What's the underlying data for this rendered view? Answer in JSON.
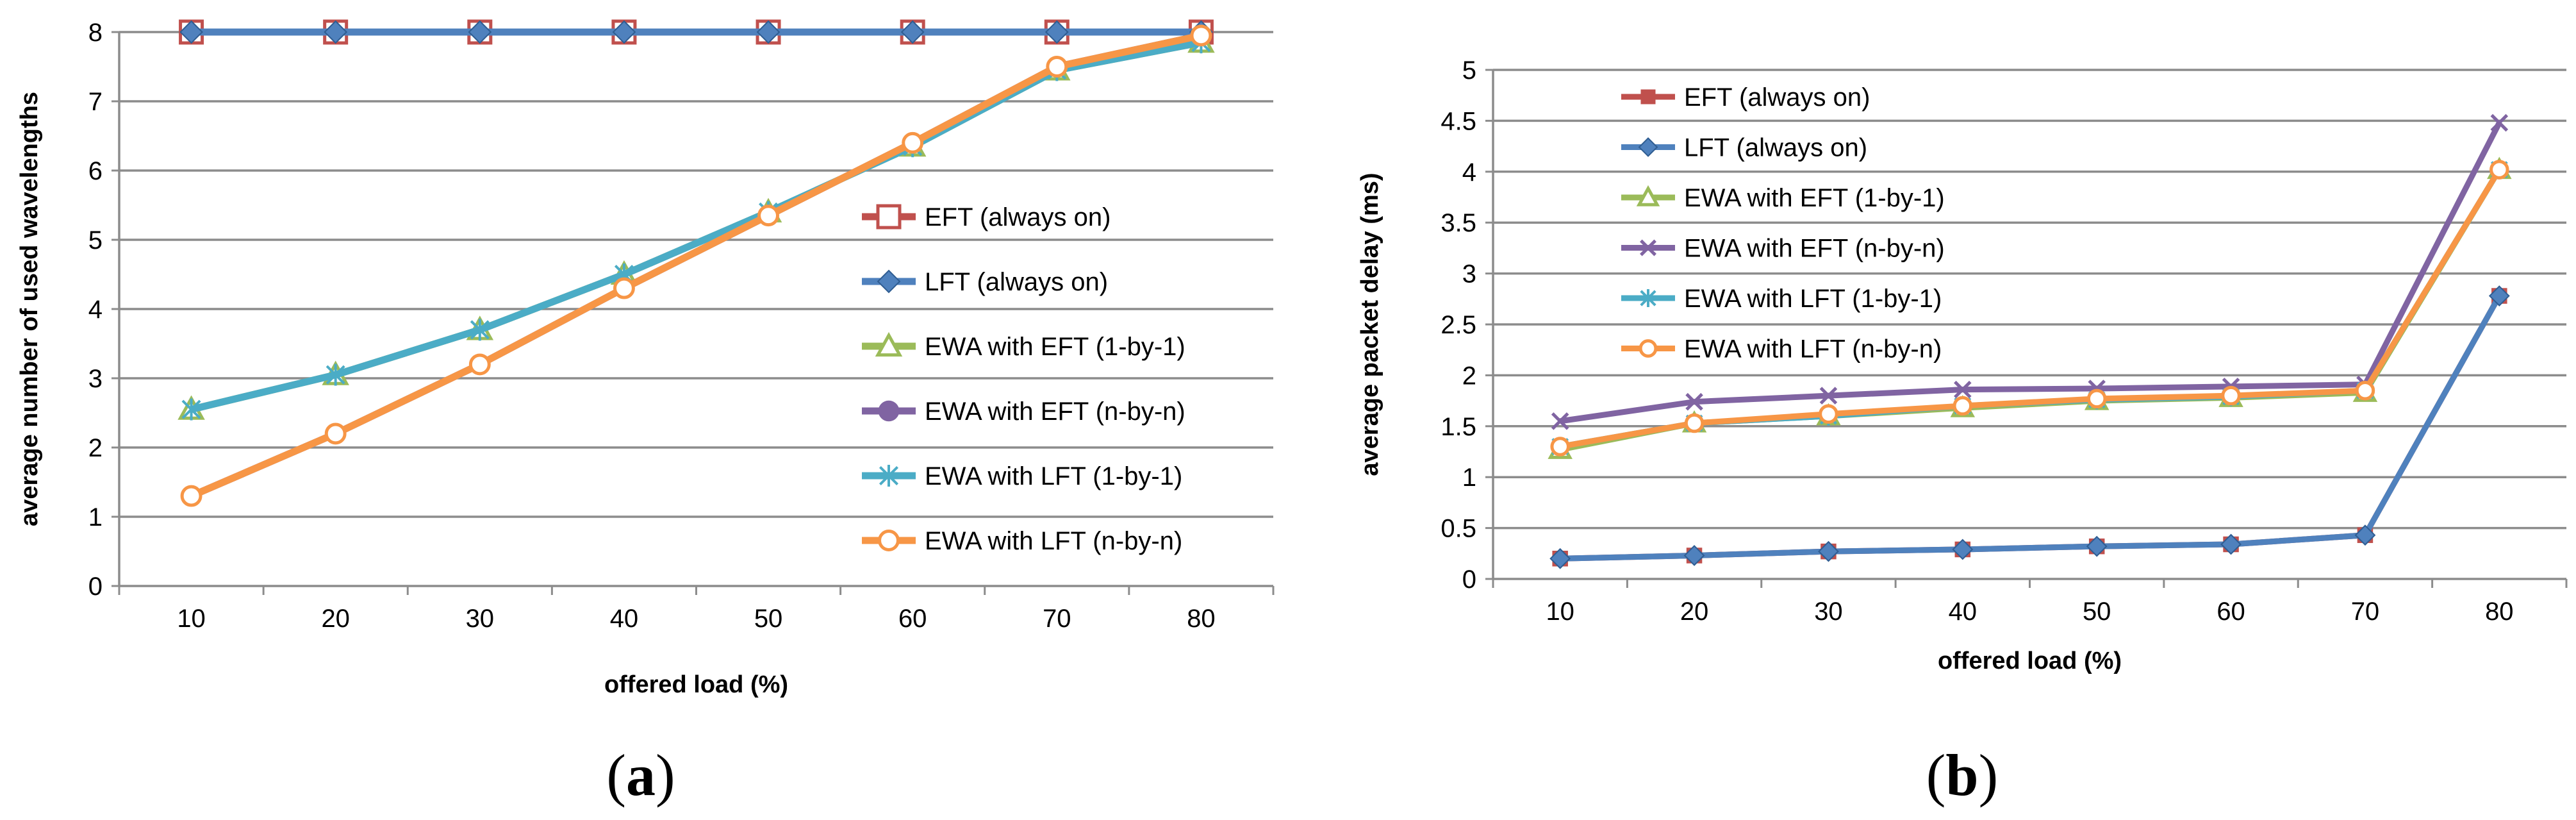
{
  "chart_data": [
    {
      "type": "line",
      "panel": "a",
      "xlabel": "offered load (%)",
      "ylabel": "average number of used wavelengths",
      "categories": [
        "10",
        "20",
        "30",
        "40",
        "50",
        "60",
        "70",
        "80"
      ],
      "yticks": [
        "0",
        "1",
        "2",
        "3",
        "4",
        "5",
        "6",
        "7",
        "8"
      ],
      "ylim": [
        0,
        8
      ],
      "grid": true,
      "legend_position": "right-middle",
      "series": [
        {
          "name": "EFT (always on)",
          "color": "#C0504D",
          "marker": "square-open",
          "values": [
            8,
            8,
            8,
            8,
            8,
            8,
            8,
            8
          ]
        },
        {
          "name": "LFT (always on)",
          "color": "#4F81BD",
          "marker": "diamond",
          "values": [
            8,
            8,
            8,
            8,
            8,
            8,
            8,
            8
          ]
        },
        {
          "name": "EWA with EFT (1-by-1)",
          "color": "#9BBB59",
          "marker": "triangle-open",
          "values": [
            2.55,
            3.05,
            3.7,
            4.5,
            5.4,
            6.35,
            7.45,
            7.85
          ]
        },
        {
          "name": "EWA with EFT (n-by-n)",
          "color": "#8064A2",
          "marker": "circle",
          "values": [
            1.3,
            2.2,
            3.2,
            4.3,
            5.35,
            6.4,
            7.5,
            7.95
          ]
        },
        {
          "name": "EWA with LFT (1-by-1)",
          "color": "#4BACC6",
          "marker": "star",
          "values": [
            2.55,
            3.05,
            3.7,
            4.5,
            5.4,
            6.35,
            7.45,
            7.85
          ]
        },
        {
          "name": "EWA with LFT (n-by-n)",
          "color": "#F79646",
          "marker": "circle-open",
          "values": [
            1.3,
            2.2,
            3.2,
            4.3,
            5.35,
            6.4,
            7.5,
            7.95
          ]
        }
      ]
    },
    {
      "type": "line",
      "panel": "b",
      "xlabel": "offered load (%)",
      "ylabel": "average packet delay (ms)",
      "categories": [
        "10",
        "20",
        "30",
        "40",
        "50",
        "60",
        "70",
        "80"
      ],
      "yticks": [
        "0",
        "0.5",
        "1",
        "1.5",
        "2",
        "2.5",
        "3",
        "3.5",
        "4",
        "4.5",
        "5"
      ],
      "ylim": [
        0,
        5
      ],
      "grid": true,
      "legend_position": "top-left",
      "series": [
        {
          "name": "EFT (always on)",
          "color": "#C0504D",
          "marker": "square",
          "values": [
            0.2,
            0.23,
            0.27,
            0.29,
            0.32,
            0.34,
            0.43,
            2.78
          ]
        },
        {
          "name": "LFT (always on)",
          "color": "#4F81BD",
          "marker": "diamond",
          "values": [
            0.2,
            0.23,
            0.27,
            0.29,
            0.32,
            0.34,
            0.43,
            2.78
          ]
        },
        {
          "name": "EWA with EFT (1-by-1)",
          "color": "#9BBB59",
          "marker": "triangle-open",
          "values": [
            1.27,
            1.53,
            1.6,
            1.68,
            1.75,
            1.78,
            1.83,
            4.02
          ]
        },
        {
          "name": "EWA with EFT (n-by-n)",
          "color": "#8064A2",
          "marker": "x",
          "values": [
            1.55,
            1.74,
            1.8,
            1.86,
            1.87,
            1.89,
            1.91,
            4.48
          ]
        },
        {
          "name": "EWA with LFT (1-by-1)",
          "color": "#4BACC6",
          "marker": "star",
          "values": [
            1.3,
            1.53,
            1.6,
            1.7,
            1.76,
            1.79,
            1.85,
            4.02
          ]
        },
        {
          "name": "EWA with LFT (n-by-n)",
          "color": "#F79646",
          "marker": "circle-open",
          "values": [
            1.3,
            1.53,
            1.62,
            1.7,
            1.77,
            1.8,
            1.85,
            4.02
          ]
        }
      ]
    }
  ],
  "panel_labels": {
    "a": {
      "open": "(",
      "letter": "a",
      "close": ")"
    },
    "b": {
      "open": "(",
      "letter": "b",
      "close": ")"
    }
  }
}
